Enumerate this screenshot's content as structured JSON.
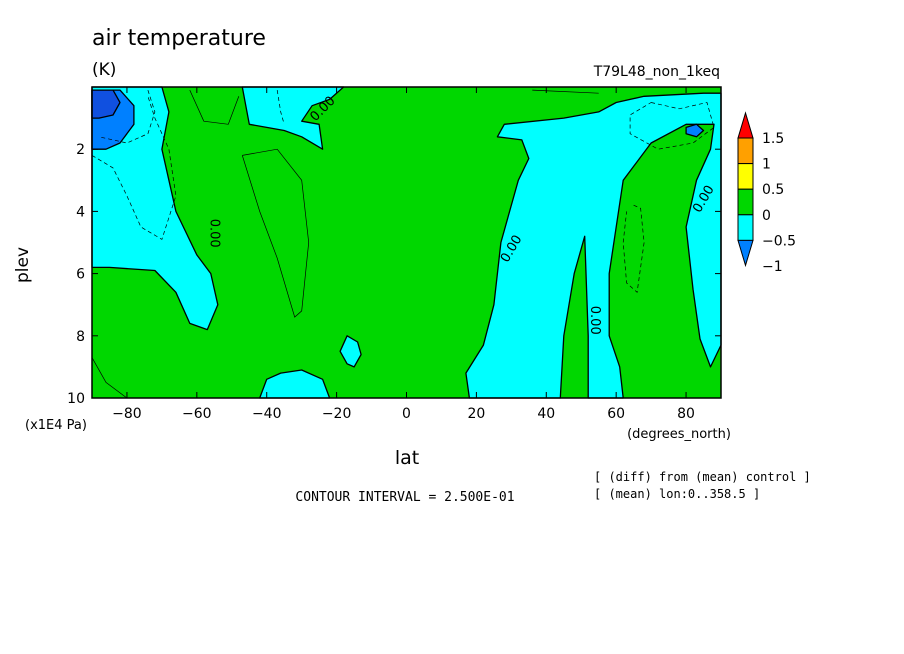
{
  "chart_data": {
    "type": "heatmap",
    "subtype": "filled-contour",
    "title": "air temperature",
    "units": "(K)",
    "run_label": "T79L48_non_1keq",
    "xlabel": "lat",
    "x_units": "(degrees_north)",
    "ylabel": "plev",
    "y_units": "(x1E4 Pa)",
    "xlim": [
      -90,
      90
    ],
    "ylim": [
      10,
      0
    ],
    "x_ticks": [
      -80,
      -60,
      -40,
      -20,
      0,
      20,
      40,
      60,
      80
    ],
    "x_tick_labels": [
      "−80",
      "−60",
      "−40",
      "−20",
      "0",
      "20",
      "40",
      "60",
      "80"
    ],
    "y_ticks": [
      2,
      4,
      6,
      8,
      10
    ],
    "y_tick_labels": [
      "2",
      "4",
      "6",
      "8",
      "10"
    ],
    "contour_interval_text": "CONTOUR INTERVAL = 2.500E-01",
    "note_lines": [
      "[ (diff) from (mean) control ]",
      "[ (mean) lon:0..358.5 ]"
    ],
    "zero_contour_label": "0.00",
    "zero_labels": [
      {
        "lat": -55,
        "plev": 4.7,
        "rot": 90
      },
      {
        "lat": -24,
        "plev": 0.7,
        "rot": -45
      },
      {
        "lat": 30,
        "plev": 5.2,
        "rot": -60
      },
      {
        "lat": 54,
        "plev": 7.5,
        "rot": 90
      },
      {
        "lat": 85,
        "plev": 3.6,
        "rot": -60
      }
    ],
    "colorbar": {
      "labels": [
        "1.5",
        "1",
        "0.5",
        "0",
        "−0.5",
        "−1"
      ],
      "levels": [
        -1,
        -0.5,
        0,
        0.5,
        1,
        1.5
      ],
      "colors": [
        "#0080ff",
        "#00ffff",
        "#00d700",
        "#ffff00",
        "#ffa000",
        "#ff0000"
      ]
    },
    "regions": [
      {
        "name": "neg-west",
        "level": "-0.5..0",
        "color": "#00ffff",
        "points": [
          [
            -90,
            0
          ],
          [
            -70,
            0
          ],
          [
            -68,
            0.8
          ],
          [
            -70,
            2
          ],
          [
            -66,
            4
          ],
          [
            -60,
            5.4
          ],
          [
            -56,
            6
          ],
          [
            -54,
            7
          ],
          [
            -57,
            7.8
          ],
          [
            -62,
            7.6
          ],
          [
            -66,
            6.6
          ],
          [
            -72,
            5.9
          ],
          [
            -85,
            5.8
          ],
          [
            -90,
            5.8
          ]
        ]
      },
      {
        "name": "neg-upper",
        "level": "-0.5..0",
        "color": "#00ffff",
        "points": [
          [
            -47,
            0
          ],
          [
            -18,
            0
          ],
          [
            -22,
            0.4
          ],
          [
            -27,
            0.6
          ],
          [
            -30,
            1.1
          ],
          [
            -25,
            1.2
          ],
          [
            -24,
            2
          ],
          [
            -30,
            1.6
          ],
          [
            -35,
            1.4
          ],
          [
            -40,
            1.3
          ],
          [
            -45,
            1.2
          ],
          [
            -46,
            0.6
          ]
        ]
      },
      {
        "name": "neg-small-1",
        "level": "-0.5..0",
        "color": "#00ffff",
        "points": [
          [
            -17,
            8
          ],
          [
            -14,
            8.2
          ],
          [
            -13,
            8.6
          ],
          [
            -15,
            9
          ],
          [
            -17,
            8.9
          ],
          [
            -19,
            8.5
          ]
        ]
      },
      {
        "name": "neg-bottom-1",
        "level": "-0.5..0",
        "color": "#00ffff",
        "points": [
          [
            -42,
            10
          ],
          [
            -40,
            9.4
          ],
          [
            -36,
            9.2
          ],
          [
            -30,
            9.1
          ],
          [
            -24,
            9.4
          ],
          [
            -22,
            10
          ]
        ]
      },
      {
        "name": "neg-east",
        "level": "-0.5..0",
        "color": "#00ffff",
        "points": [
          [
            18,
            10
          ],
          [
            17,
            9.2
          ],
          [
            22,
            8.3
          ],
          [
            25,
            7
          ],
          [
            27,
            5
          ],
          [
            32,
            3
          ],
          [
            35,
            2.3
          ],
          [
            33,
            1.7
          ],
          [
            26,
            1.6
          ],
          [
            28,
            1.2
          ],
          [
            45,
            1
          ],
          [
            55,
            0.8
          ],
          [
            60,
            0.5
          ],
          [
            68,
            0.3
          ],
          [
            85,
            0.2
          ],
          [
            90,
            0.2
          ],
          [
            90,
            8.3
          ],
          [
            87,
            9
          ],
          [
            84,
            8.1
          ],
          [
            82,
            6.5
          ],
          [
            80,
            4.5
          ],
          [
            83,
            3
          ],
          [
            87,
            2
          ],
          [
            88,
            1.2
          ],
          [
            80,
            1.2
          ],
          [
            70,
            1.8
          ],
          [
            62,
            3
          ],
          [
            58,
            6
          ],
          [
            58,
            8
          ],
          [
            61,
            9
          ],
          [
            62,
            10
          ],
          [
            52,
            10
          ],
          [
            52,
            8
          ],
          [
            51,
            4.8
          ],
          [
            48,
            6
          ],
          [
            45,
            8
          ],
          [
            44,
            10
          ]
        ]
      },
      {
        "name": "minus-half-1",
        "level": "-1..-0.5",
        "color": "#0080ff",
        "points": [
          [
            -90,
            0.1
          ],
          [
            -82,
            0.1
          ],
          [
            -78,
            0.6
          ],
          [
            -78,
            1.2
          ],
          [
            -82,
            1.8
          ],
          [
            -86,
            2
          ],
          [
            -90,
            2
          ]
        ]
      },
      {
        "name": "minus-half-2",
        "level": "-1..-0.5",
        "color": "#0080ff",
        "points": [
          [
            80,
            1.3
          ],
          [
            83,
            1.2
          ],
          [
            85,
            1.4
          ],
          [
            83,
            1.6
          ],
          [
            80,
            1.5
          ]
        ]
      },
      {
        "name": "minus-one",
        "level": "< -1",
        "color": "#1050e0",
        "points": [
          [
            -90,
            0.1
          ],
          [
            -84,
            0.1
          ],
          [
            -82,
            0.5
          ],
          [
            -84,
            0.9
          ],
          [
            -88,
            1
          ],
          [
            -90,
            1
          ]
        ]
      }
    ],
    "contour_lines": [
      {
        "style": "dashed",
        "points": [
          [
            -90,
            2.2
          ],
          [
            -84,
            2.6
          ],
          [
            -80,
            3.5
          ],
          [
            -76,
            4.5
          ],
          [
            -70,
            4.9
          ],
          [
            -66,
            3.5
          ],
          [
            -68,
            2
          ],
          [
            -72,
            1
          ],
          [
            -74,
            0.3
          ]
        ]
      },
      {
        "style": "dashed",
        "points": [
          [
            -74,
            0.1
          ],
          [
            -72,
            0.8
          ],
          [
            -74,
            1.5
          ],
          [
            -80,
            1.8
          ],
          [
            -88,
            1.6
          ]
        ]
      },
      {
        "style": "dashed",
        "points": [
          [
            -37,
            0.1
          ],
          [
            -36,
            0.8
          ],
          [
            -35,
            1.2
          ]
        ]
      },
      {
        "style": "dashed",
        "points": [
          [
            70,
            0.5
          ],
          [
            78,
            0.7
          ],
          [
            86,
            0.5
          ],
          [
            88,
            1.3
          ],
          [
            82,
            1.8
          ],
          [
            72,
            2
          ],
          [
            64,
            1.5
          ],
          [
            64,
            0.9
          ],
          [
            70,
            0.5
          ]
        ]
      },
      {
        "style": "dashed",
        "points": [
          [
            65,
            3.8
          ],
          [
            67,
            3.9
          ],
          [
            68,
            5
          ],
          [
            66,
            6.6
          ],
          [
            63,
            6.3
          ],
          [
            62,
            5
          ],
          [
            63,
            4
          ]
        ]
      },
      {
        "style": "thin",
        "points": [
          [
            -47,
            2.2
          ],
          [
            -37,
            2
          ],
          [
            -30,
            3
          ],
          [
            -28,
            5
          ],
          [
            -30,
            7.2
          ],
          [
            -32,
            7.4
          ],
          [
            -37,
            5.5
          ],
          [
            -42,
            4
          ],
          [
            -47,
            2.2
          ]
        ]
      },
      {
        "style": "thin",
        "points": [
          [
            -62,
            0.1
          ],
          [
            -58,
            1.1
          ],
          [
            -51,
            1.2
          ],
          [
            -48,
            0.3
          ]
        ]
      },
      {
        "style": "thin",
        "points": [
          [
            -90,
            8.7
          ],
          [
            -86,
            9.5
          ],
          [
            -80,
            10
          ]
        ]
      },
      {
        "style": "thin",
        "points": [
          [
            36,
            0.1
          ],
          [
            55,
            0.2
          ]
        ]
      }
    ]
  }
}
